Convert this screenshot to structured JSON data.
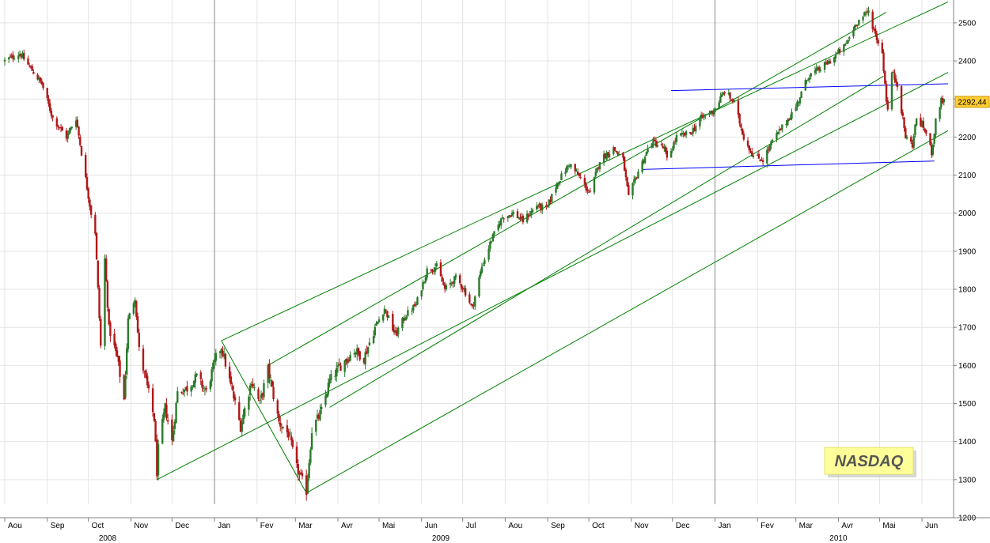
{
  "chart_data": {
    "type": "candlestick",
    "title": "NASDAQ",
    "last_price_label": "2292,44",
    "last_price": 2292.44,
    "ylim": [
      1200,
      2560
    ],
    "y_ticks": [
      1200,
      1300,
      1400,
      1500,
      1600,
      1700,
      1800,
      1900,
      2000,
      2100,
      2200,
      2300,
      2400,
      2500
    ],
    "x_range": [
      "2008-08-01",
      "2010-06-20"
    ],
    "month_ticks": [
      {
        "date": "2008-08-01",
        "label": "Aou"
      },
      {
        "date": "2008-09-01",
        "label": "Sep"
      },
      {
        "date": "2008-10-01",
        "label": "Oct"
      },
      {
        "date": "2008-11-01",
        "label": "Nov"
      },
      {
        "date": "2008-12-01",
        "label": "Dec"
      },
      {
        "date": "2009-01-01",
        "label": "Jan"
      },
      {
        "date": "2009-02-01",
        "label": "Fev"
      },
      {
        "date": "2009-03-01",
        "label": "Mar"
      },
      {
        "date": "2009-04-01",
        "label": "Avr"
      },
      {
        "date": "2009-05-01",
        "label": "Mai"
      },
      {
        "date": "2009-06-01",
        "label": "Jun"
      },
      {
        "date": "2009-07-01",
        "label": "Jul"
      },
      {
        "date": "2009-08-01",
        "label": "Aou"
      },
      {
        "date": "2009-09-01",
        "label": "Sep"
      },
      {
        "date": "2009-10-01",
        "label": "Oct"
      },
      {
        "date": "2009-11-01",
        "label": "Nov"
      },
      {
        "date": "2009-12-01",
        "label": "Dec"
      },
      {
        "date": "2010-01-01",
        "label": "Jan"
      },
      {
        "date": "2010-02-01",
        "label": "Fev"
      },
      {
        "date": "2010-03-01",
        "label": "Mar"
      },
      {
        "date": "2010-04-01",
        "label": "Avr"
      },
      {
        "date": "2010-05-01",
        "label": "Mai"
      },
      {
        "date": "2010-06-01",
        "label": "Jun"
      }
    ],
    "year_labels": [
      {
        "date": "2008-10-15",
        "label": "2008"
      },
      {
        "date": "2009-06-15",
        "label": "2009"
      },
      {
        "date": "2010-04-01",
        "label": "2010"
      }
    ],
    "year_separators": [
      "2009-01-01",
      "2010-01-01"
    ],
    "close_path": [
      [
        "2008-08-01",
        2400
      ],
      [
        "2008-08-12",
        2420
      ],
      [
        "2008-08-20",
        2380
      ],
      [
        "2008-08-28",
        2340
      ],
      [
        "2008-09-05",
        2250
      ],
      [
        "2008-09-15",
        2200
      ],
      [
        "2008-09-22",
        2250
      ],
      [
        "2008-09-29",
        2090
      ],
      [
        "2008-10-03",
        2000
      ],
      [
        "2008-10-06",
        1950
      ],
      [
        "2008-10-10",
        1650
      ],
      [
        "2008-10-13",
        1880
      ],
      [
        "2008-10-16",
        1700
      ],
      [
        "2008-10-22",
        1620
      ],
      [
        "2008-10-27",
        1510
      ],
      [
        "2008-10-30",
        1720
      ],
      [
        "2008-11-04",
        1780
      ],
      [
        "2008-11-07",
        1640
      ],
      [
        "2008-11-12",
        1560
      ],
      [
        "2008-11-18",
        1460
      ],
      [
        "2008-11-20",
        1320
      ],
      [
        "2008-11-21",
        1380
      ],
      [
        "2008-11-26",
        1490
      ],
      [
        "2008-12-01",
        1400
      ],
      [
        "2008-12-05",
        1530
      ],
      [
        "2008-12-12",
        1540
      ],
      [
        "2008-12-19",
        1570
      ],
      [
        "2008-12-26",
        1530
      ],
      [
        "2009-01-02",
        1620
      ],
      [
        "2009-01-06",
        1650
      ],
      [
        "2009-01-12",
        1560
      ],
      [
        "2009-01-20",
        1440
      ],
      [
        "2009-01-28",
        1560
      ],
      [
        "2009-02-03",
        1500
      ],
      [
        "2009-02-09",
        1590
      ],
      [
        "2009-02-17",
        1450
      ],
      [
        "2009-02-24",
        1420
      ],
      [
        "2009-03-02",
        1330
      ],
      [
        "2009-03-09",
        1270
      ],
      [
        "2009-03-13",
        1430
      ],
      [
        "2009-03-20",
        1480
      ],
      [
        "2009-03-26",
        1560
      ],
      [
        "2009-04-03",
        1600
      ],
      [
        "2009-04-13",
        1640
      ],
      [
        "2009-04-20",
        1620
      ],
      [
        "2009-04-28",
        1700
      ],
      [
        "2009-05-05",
        1750
      ],
      [
        "2009-05-13",
        1680
      ],
      [
        "2009-05-20",
        1730
      ],
      [
        "2009-05-28",
        1760
      ],
      [
        "2009-06-05",
        1850
      ],
      [
        "2009-06-12",
        1860
      ],
      [
        "2009-06-18",
        1800
      ],
      [
        "2009-06-26",
        1830
      ],
      [
        "2009-07-02",
        1800
      ],
      [
        "2009-07-08",
        1750
      ],
      [
        "2009-07-15",
        1860
      ],
      [
        "2009-07-22",
        1930
      ],
      [
        "2009-07-30",
        1990
      ],
      [
        "2009-08-07",
        2000
      ],
      [
        "2009-08-14",
        1980
      ],
      [
        "2009-08-24",
        2020
      ],
      [
        "2009-08-31",
        2010
      ],
      [
        "2009-09-08",
        2080
      ],
      [
        "2009-09-17",
        2130
      ],
      [
        "2009-09-25",
        2090
      ],
      [
        "2009-10-02",
        2050
      ],
      [
        "2009-10-09",
        2140
      ],
      [
        "2009-10-19",
        2170
      ],
      [
        "2009-10-26",
        2140
      ],
      [
        "2009-10-30",
        2040
      ],
      [
        "2009-11-06",
        2110
      ],
      [
        "2009-11-16",
        2190
      ],
      [
        "2009-11-25",
        2170
      ],
      [
        "2009-11-27",
        2140
      ],
      [
        "2009-12-04",
        2200
      ],
      [
        "2009-12-14",
        2210
      ],
      [
        "2009-12-22",
        2250
      ],
      [
        "2009-12-31",
        2270
      ],
      [
        "2010-01-08",
        2320
      ],
      [
        "2010-01-15",
        2290
      ],
      [
        "2010-01-22",
        2200
      ],
      [
        "2010-01-29",
        2150
      ],
      [
        "2010-02-05",
        2140
      ],
      [
        "2010-02-12",
        2190
      ],
      [
        "2010-02-22",
        2240
      ],
      [
        "2010-03-01",
        2280
      ],
      [
        "2010-03-10",
        2360
      ],
      [
        "2010-03-19",
        2380
      ],
      [
        "2010-03-26",
        2400
      ],
      [
        "2010-04-06",
        2440
      ],
      [
        "2010-04-14",
        2500
      ],
      [
        "2010-04-23",
        2530
      ],
      [
        "2010-04-27",
        2480
      ],
      [
        "2010-05-03",
        2420
      ],
      [
        "2010-05-06",
        2300
      ],
      [
        "2010-05-07",
        2270
      ],
      [
        "2010-05-10",
        2370
      ],
      [
        "2010-05-14",
        2340
      ],
      [
        "2010-05-20",
        2200
      ],
      [
        "2010-05-25",
        2180
      ],
      [
        "2010-05-28",
        2250
      ],
      [
        "2010-06-03",
        2220
      ],
      [
        "2010-06-08",
        2160
      ],
      [
        "2010-06-11",
        2240
      ],
      [
        "2010-06-15",
        2300
      ],
      [
        "2010-06-17",
        2292.44
      ]
    ],
    "trendlines": [
      {
        "color": "#008000",
        "from": [
          "2008-11-20",
          1300
        ],
        "to": [
          "2010-06-20",
          2370
        ]
      },
      {
        "color": "#008000",
        "from": [
          "2009-01-06",
          1665
        ],
        "to": [
          "2010-06-20",
          2555
        ]
      },
      {
        "color": "#008000",
        "from": [
          "2009-01-06",
          1665
        ],
        "to": [
          "2009-03-09",
          1265
        ]
      },
      {
        "color": "#008000",
        "from": [
          "2009-02-09",
          1600
        ],
        "to": [
          "2010-05-06",
          2528
        ]
      },
      {
        "color": "#008000",
        "from": [
          "2009-03-09",
          1265
        ],
        "to": [
          "2010-06-20",
          2217
        ]
      },
      {
        "color": "#008000",
        "from": [
          "2009-03-26",
          1490
        ],
        "to": [
          "2010-05-04",
          2360
        ]
      },
      {
        "color": "#0000ff",
        "from": [
          "2009-11-30",
          2322
        ],
        "to": [
          "2010-06-20",
          2340
        ]
      },
      {
        "color": "#0000ff",
        "from": [
          "2009-11-09",
          2115
        ],
        "to": [
          "2010-06-10",
          2137
        ]
      }
    ],
    "grid": true,
    "legend_position": "bottom-right"
  },
  "colors": {
    "up_candle": "#2a7a2a",
    "down_candle": "#b01818",
    "grid": "#e4e4e4",
    "channel": "#008000",
    "range": "#0000ff",
    "price_tag": "#ffcc33",
    "title_box": "#ffff99"
  }
}
